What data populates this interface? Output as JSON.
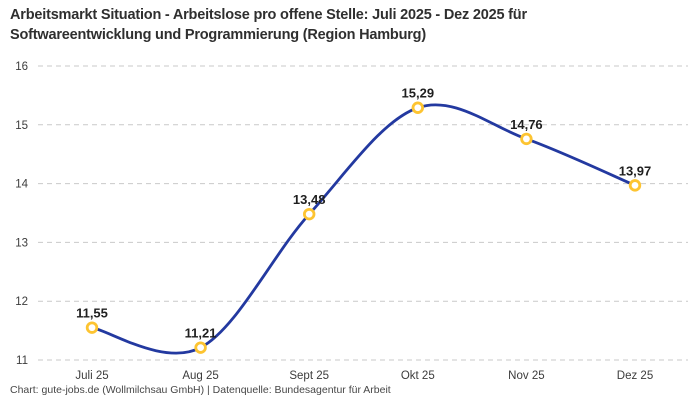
{
  "header": {
    "title_line1": "Arbeitsmarkt Situation - Arbeitslose pro offene Stelle: Juli 2025 - Dez 2025 für",
    "title_line2": "Softwareentwicklung und Programmierung (Region Hamburg)"
  },
  "footer": {
    "attribution": "Chart: gute-jobs.de (Wollmilchsau GmbH) | Datenquelle: Bundesagentur für Arbeit"
  },
  "chart_data": {
    "type": "line",
    "title": "Arbeitsmarkt Situation - Arbeitslose pro offene Stelle: Juli 2025 - Dez 2025 für Softwareentwicklung und Programmierung (Region Hamburg)",
    "categories": [
      "Juli 25",
      "Aug 25",
      "Sept 25",
      "Okt 25",
      "Nov 25",
      "Dez 25"
    ],
    "values": [
      11.55,
      11.21,
      13.48,
      15.29,
      14.76,
      13.97
    ],
    "value_labels": [
      "11,55",
      "11,21",
      "13,48",
      "15,29",
      "14,76",
      "13,97"
    ],
    "xlabel": "",
    "ylabel": "",
    "ylim": [
      11,
      16
    ],
    "yticks": [
      11,
      12,
      13,
      14,
      15,
      16
    ],
    "grid": "horizontal-dashed",
    "legend_position": "none",
    "curve": "smooth",
    "colors": {
      "line": "#2339a0",
      "marker_ring": "#fdc431",
      "marker_fill": "#ffffff",
      "gridline": "#c9c9c9",
      "tick_text": "#3c3c3c",
      "label_text": "#1f1f1f"
    }
  }
}
